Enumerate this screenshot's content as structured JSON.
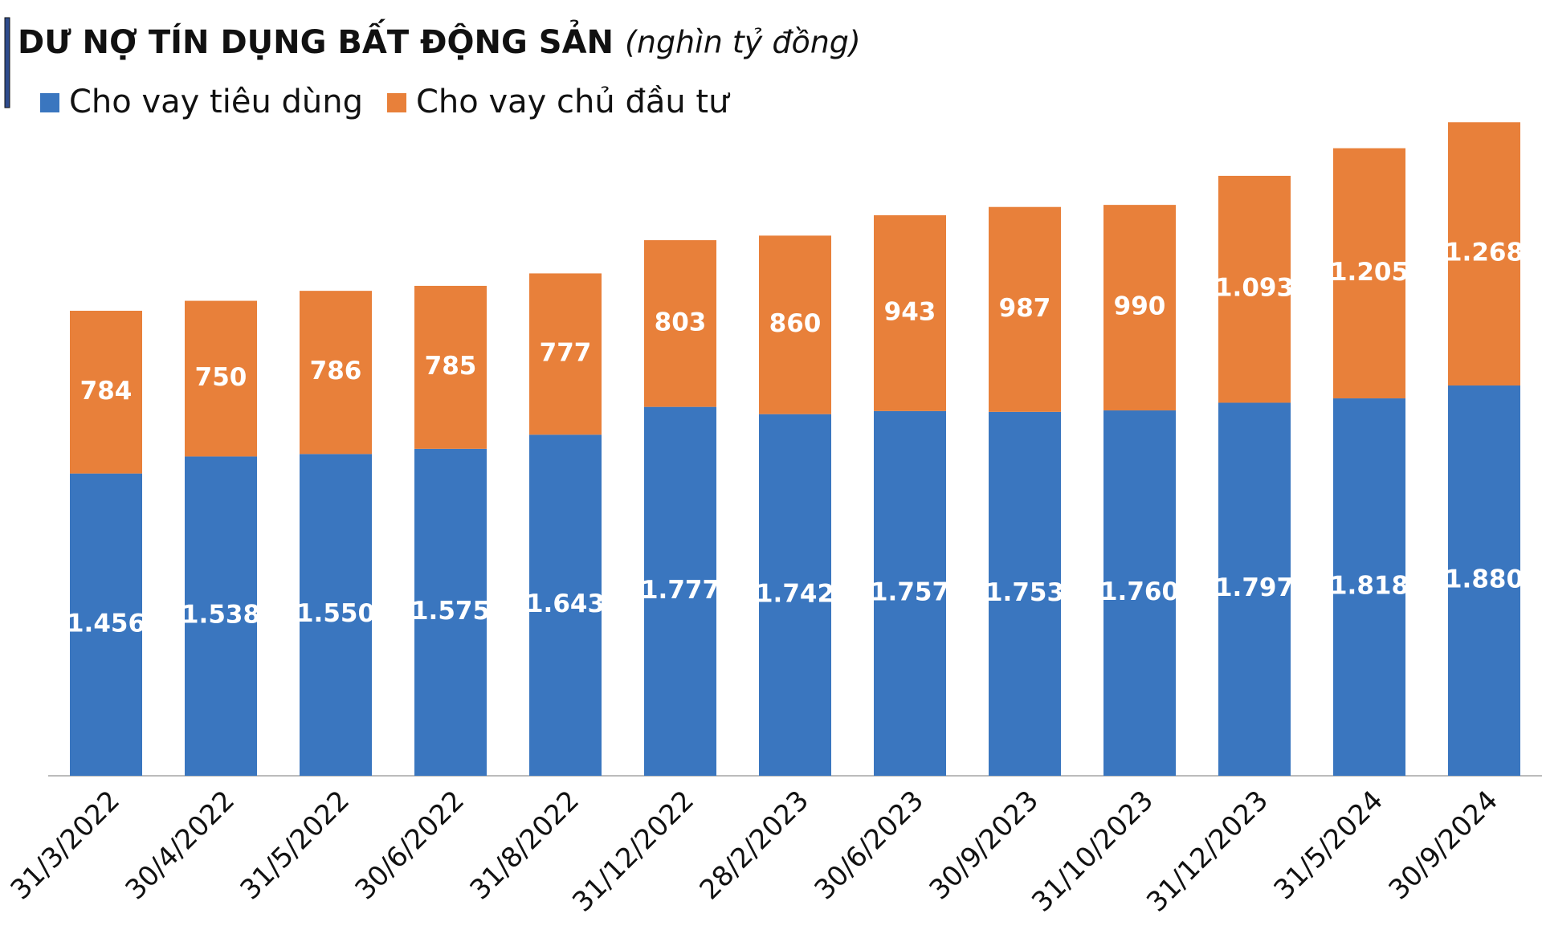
{
  "chart_data": {
    "type": "stacked-bar",
    "title": "DƯ NỢ TÍN DỤNG BẤT ĐỘNG SẢN",
    "subtitle": "(nghìn tỷ đồng)",
    "categories": [
      "31/3/2022",
      "30/4/2022",
      "31/5/2022",
      "30/6/2022",
      "31/8/2022",
      "31/12/2022",
      "28/2/2023",
      "30/6/2023",
      "30/9/2023",
      "31/10/2023",
      "31/12/2023",
      "31/5/2024",
      "30/9/2024"
    ],
    "series": [
      {
        "name": "Cho vay tiêu dùng",
        "color": "#3a76bf",
        "values": [
          1456,
          1538,
          1550,
          1575,
          1643,
          1777,
          1742,
          1757,
          1753,
          1760,
          1797,
          1818,
          1880
        ],
        "value_labels": [
          "1.456",
          "1.538",
          "1.550",
          "1.575",
          "1.643",
          "1.777",
          "1.742",
          "1.757",
          "1.753",
          "1.760",
          "1.797",
          "1.818",
          "1.880"
        ]
      },
      {
        "name": "Cho vay chủ đầu tư",
        "color": "#e8803a",
        "values": [
          784,
          750,
          786,
          785,
          777,
          803,
          860,
          943,
          987,
          990,
          1093,
          1205,
          1268
        ],
        "value_labels": [
          "784",
          "750",
          "786",
          "785",
          "777",
          "803",
          "860",
          "943",
          "987",
          "990",
          "1.093",
          "1.205",
          "1.268"
        ]
      }
    ]
  }
}
